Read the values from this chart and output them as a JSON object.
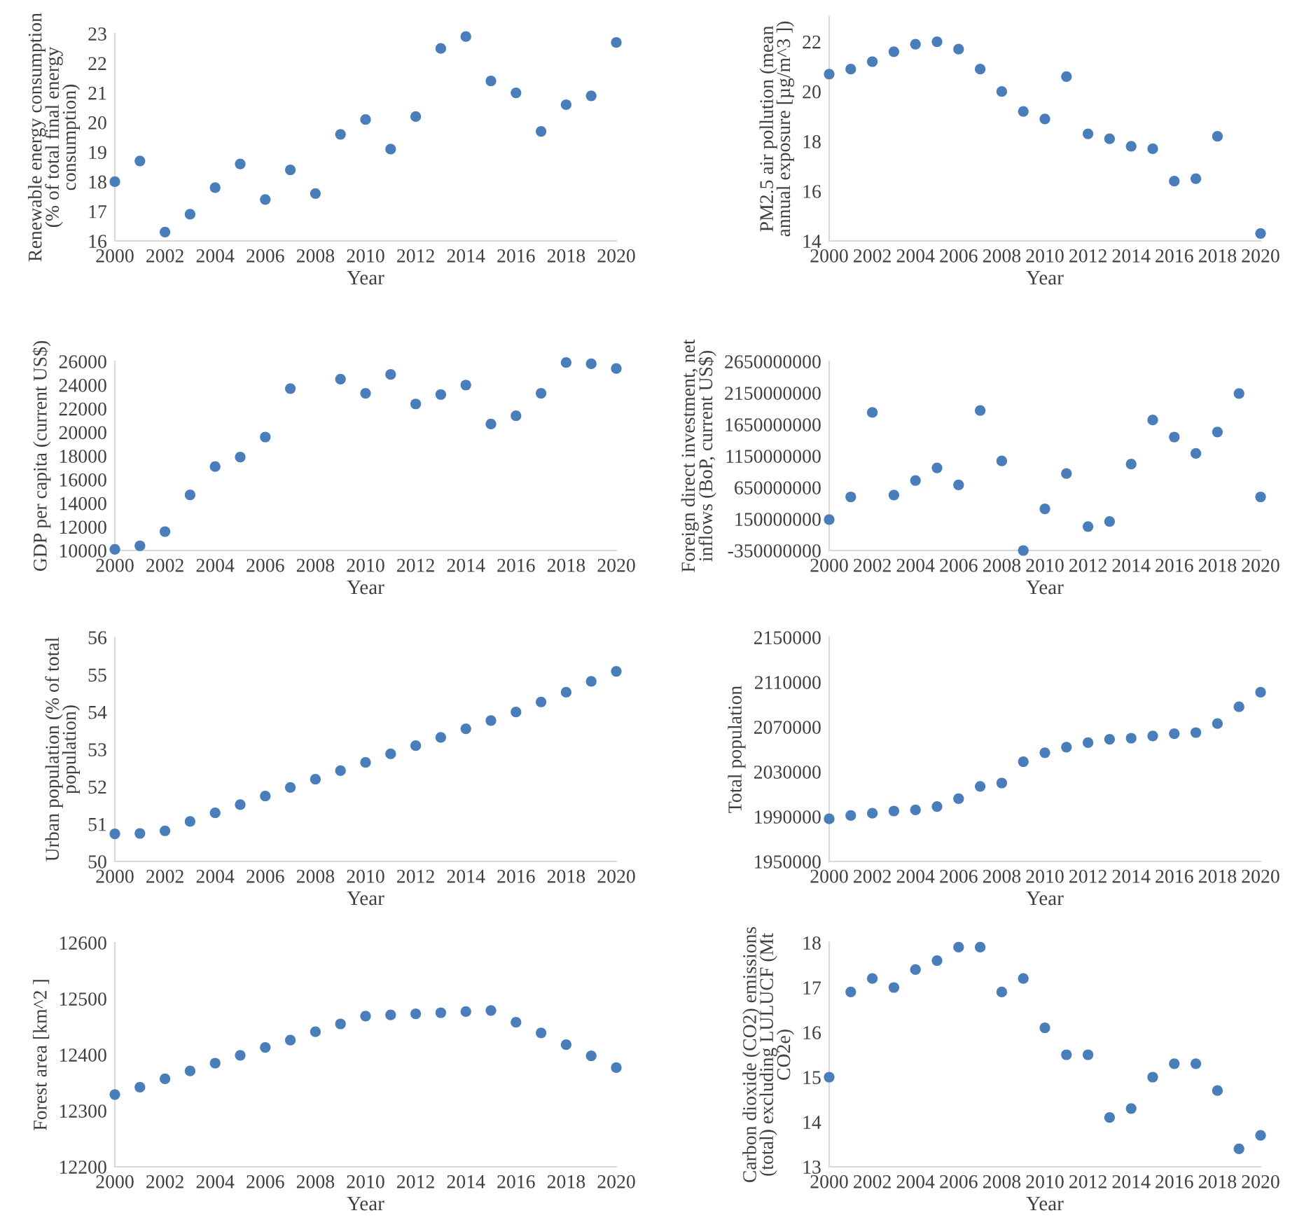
{
  "chart_data": [
    {
      "type": "scatter",
      "xlabel": "Year",
      "ylabel": "Renewable energy consumption\n(% of total final energy\nconsumption)",
      "x": [
        2000,
        2001,
        2002,
        2003,
        2004,
        2005,
        2006,
        2007,
        2008,
        2009,
        2010,
        2011,
        2012,
        2013,
        2014,
        2015,
        2016,
        2017,
        2018,
        2019,
        2020
      ],
      "series": [
        {
          "color": "#4a7ebb",
          "values": [
            18.0,
            18.7,
            16.3,
            16.9,
            17.8,
            18.6,
            17.4,
            18.4,
            17.6,
            19.6,
            20.1,
            19.1,
            20.2,
            22.5,
            22.9,
            21.4,
            21.0,
            19.7,
            20.6,
            20.9,
            22.7
          ]
        }
      ],
      "xlim": [
        2000,
        2020
      ],
      "xticks": [
        2000,
        2002,
        2004,
        2006,
        2008,
        2010,
        2012,
        2014,
        2016,
        2018,
        2020
      ],
      "ylim": [
        16,
        23
      ],
      "yticks": [
        16,
        17,
        18,
        19,
        20,
        21,
        22,
        23
      ],
      "grid": false,
      "marker": "circle"
    },
    {
      "type": "scatter",
      "xlabel": "Year",
      "ylabel": "PM2.5 air pollution (mean\nannual exposure [µg/m^3 ])",
      "x": [
        2000,
        2001,
        2002,
        2003,
        2004,
        2005,
        2006,
        2007,
        2008,
        2009,
        2010,
        2011,
        2012,
        2013,
        2014,
        2015,
        2016,
        2017,
        2018,
        2019,
        2020
      ],
      "series": [
        {
          "color": "#4a7ebb",
          "values": [
            20.7,
            20.9,
            21.2,
            21.6,
            21.9,
            22.0,
            21.7,
            20.9,
            20.0,
            19.2,
            18.9,
            20.6,
            18.3,
            18.1,
            17.8,
            17.7,
            16.4,
            16.5,
            18.2,
            null,
            14.3
          ]
        }
      ],
      "xlim": [
        2000,
        2020
      ],
      "xticks": [
        2000,
        2002,
        2004,
        2006,
        2008,
        2010,
        2012,
        2014,
        2016,
        2018,
        2020
      ],
      "ylim": [
        14,
        23
      ],
      "yticks": [
        14,
        16,
        18,
        20,
        22
      ],
      "grid": false,
      "marker": "circle"
    },
    {
      "type": "scatter",
      "xlabel": "Year",
      "ylabel": "GDP per capita (current US$)",
      "x": [
        2000,
        2001,
        2002,
        2003,
        2004,
        2005,
        2006,
        2007,
        2008,
        2009,
        2010,
        2011,
        2012,
        2013,
        2014,
        2015,
        2016,
        2017,
        2018,
        2019,
        2020
      ],
      "series": [
        {
          "color": "#4a7ebb",
          "values": [
            10100,
            10400,
            11600,
            14700,
            17100,
            17900,
            19600,
            23700,
            null,
            24500,
            23300,
            24900,
            22400,
            23200,
            24000,
            20700,
            21400,
            23300,
            25900,
            25800,
            25400
          ]
        }
      ],
      "xlim": [
        2000,
        2020
      ],
      "xticks": [
        2000,
        2002,
        2004,
        2006,
        2008,
        2010,
        2012,
        2014,
        2016,
        2018,
        2020
      ],
      "ylim": [
        10000,
        26000
      ],
      "yticks": [
        10000,
        12000,
        14000,
        16000,
        18000,
        20000,
        22000,
        24000,
        26000
      ],
      "grid": false,
      "marker": "circle"
    },
    {
      "type": "scatter",
      "xlabel": "Year",
      "ylabel": "Foreign direct investment, net\ninflows (BoP, current US$)",
      "x": [
        2000,
        2001,
        2002,
        2003,
        2004,
        2005,
        2006,
        2007,
        2008,
        2009,
        2010,
        2011,
        2012,
        2013,
        2014,
        2015,
        2016,
        2017,
        2018,
        2019,
        2020
      ],
      "series": [
        {
          "color": "#4a7ebb",
          "values": [
            140000000,
            500000000,
            1840000000,
            530000000,
            760000000,
            960000000,
            690000000,
            1870000000,
            1070000000,
            -350000000,
            310000000,
            870000000,
            30000000,
            110000000,
            1020000000,
            1720000000,
            1450000000,
            1190000000,
            1530000000,
            2140000000,
            500000000
          ]
        }
      ],
      "xlim": [
        2000,
        2020
      ],
      "xticks": [
        2000,
        2002,
        2004,
        2006,
        2008,
        2010,
        2012,
        2014,
        2016,
        2018,
        2020
      ],
      "ylim": [
        -350000000,
        2650000000
      ],
      "yticks": [
        -350000000,
        150000000,
        650000000,
        1150000000,
        1650000000,
        2150000000,
        2650000000
      ],
      "grid": false,
      "marker": "circle"
    },
    {
      "type": "scatter",
      "xlabel": "Year",
      "ylabel": "Urban population (% of total\npopulation)",
      "x": [
        2000,
        2001,
        2002,
        2003,
        2004,
        2005,
        2006,
        2007,
        2008,
        2009,
        2010,
        2011,
        2012,
        2013,
        2014,
        2015,
        2016,
        2017,
        2018,
        2019,
        2020
      ],
      "series": [
        {
          "color": "#4a7ebb",
          "values": [
            50.74,
            50.75,
            50.82,
            51.07,
            51.3,
            51.52,
            51.75,
            51.98,
            52.2,
            52.43,
            52.65,
            52.88,
            53.1,
            53.32,
            53.55,
            53.77,
            54.0,
            54.27,
            54.53,
            54.82,
            55.09
          ]
        }
      ],
      "xlim": [
        2000,
        2020
      ],
      "xticks": [
        2000,
        2002,
        2004,
        2006,
        2008,
        2010,
        2012,
        2014,
        2016,
        2018,
        2020
      ],
      "ylim": [
        50,
        56
      ],
      "yticks": [
        50,
        51,
        52,
        53,
        54,
        55,
        56
      ],
      "grid": false,
      "marker": "circle"
    },
    {
      "type": "scatter",
      "xlabel": "Year",
      "ylabel": "Total population",
      "x": [
        2000,
        2001,
        2002,
        2003,
        2004,
        2005,
        2006,
        2007,
        2008,
        2009,
        2010,
        2011,
        2012,
        2013,
        2014,
        2015,
        2016,
        2017,
        2018,
        2019,
        2020
      ],
      "series": [
        {
          "color": "#4a7ebb",
          "values": [
            1988000,
            1991000,
            1993000,
            1995000,
            1996000,
            1999000,
            2006000,
            2017000,
            2020000,
            2039000,
            2047000,
            2052000,
            2056000,
            2059000,
            2060000,
            2062000,
            2064000,
            2065000,
            2073000,
            2088000,
            2101000
          ]
        }
      ],
      "xlim": [
        2000,
        2020
      ],
      "xticks": [
        2000,
        2002,
        2004,
        2006,
        2008,
        2010,
        2012,
        2014,
        2016,
        2018,
        2020
      ],
      "ylim": [
        1950000,
        2150000
      ],
      "yticks": [
        1950000,
        1990000,
        2030000,
        2070000,
        2110000,
        2150000
      ],
      "grid": false,
      "marker": "circle"
    },
    {
      "type": "scatter",
      "xlabel": "Year",
      "ylabel": "Forest area [km^2 ]",
      "x": [
        2000,
        2001,
        2002,
        2003,
        2004,
        2005,
        2006,
        2007,
        2008,
        2009,
        2010,
        2011,
        2012,
        2013,
        2014,
        2015,
        2016,
        2017,
        2018,
        2019,
        2020
      ],
      "series": [
        {
          "color": "#4a7ebb",
          "values": [
            12329,
            12342,
            12357,
            12371,
            12385,
            12399,
            12413,
            12426,
            12441,
            12455,
            12469,
            12471,
            12473,
            12475,
            12477,
            12479,
            12458,
            12439,
            12418,
            12398,
            12377
          ]
        }
      ],
      "xlim": [
        2000,
        2020
      ],
      "xticks": [
        2000,
        2002,
        2004,
        2006,
        2008,
        2010,
        2012,
        2014,
        2016,
        2018,
        2020
      ],
      "ylim": [
        12200,
        12600
      ],
      "yticks": [
        12200,
        12300,
        12400,
        12500,
        12600
      ],
      "grid": false,
      "marker": "circle"
    },
    {
      "type": "scatter",
      "xlabel": "Year",
      "ylabel": "Carbon dioxide (CO2) emissions\n(total) excluding LULUCF (Mt\nCO2e)",
      "x": [
        2000,
        2001,
        2002,
        2003,
        2004,
        2005,
        2006,
        2007,
        2008,
        2009,
        2010,
        2011,
        2012,
        2013,
        2014,
        2015,
        2016,
        2017,
        2018,
        2019,
        2020
      ],
      "series": [
        {
          "color": "#4a7ebb",
          "values": [
            15.0,
            16.9,
            17.2,
            17.0,
            17.4,
            17.6,
            17.9,
            17.9,
            16.9,
            17.2,
            16.1,
            15.5,
            15.5,
            14.1,
            14.3,
            15.0,
            15.3,
            15.3,
            14.7,
            13.4,
            13.7
          ]
        }
      ],
      "xlim": [
        2000,
        2020
      ],
      "xticks": [
        2000,
        2002,
        2004,
        2006,
        2008,
        2010,
        2012,
        2014,
        2016,
        2018,
        2020
      ],
      "ylim": [
        13,
        18
      ],
      "yticks": [
        13,
        14,
        15,
        16,
        17,
        18
      ],
      "grid": false,
      "marker": "circle"
    }
  ]
}
